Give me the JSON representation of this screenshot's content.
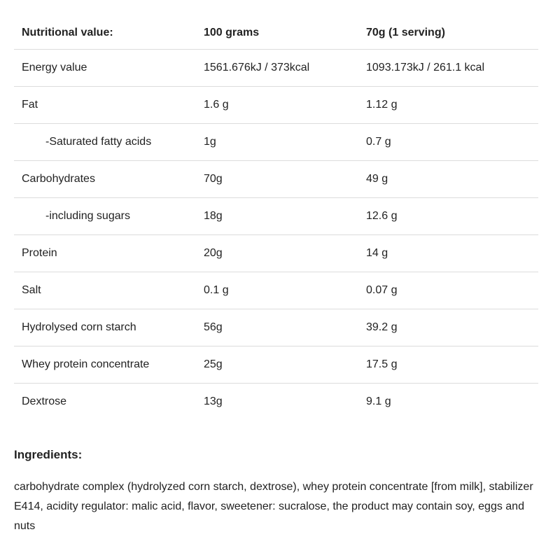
{
  "table": {
    "headers": [
      "Nutritional value:",
      "100 grams",
      "70g (1 serving)"
    ],
    "rows": [
      {
        "name": "Energy value",
        "per_100g": "1561.676kJ / 373kcal",
        "per_serving": "1093.173kJ / 261.1 kcal"
      },
      {
        "name": "Fat",
        "per_100g": "1.6 g",
        "per_serving": "1.12 g"
      },
      {
        "name": "-Saturated fatty acids",
        "per_100g": "1g",
        "per_serving": "0.7 g"
      },
      {
        "name": "Carbohydrates",
        "per_100g": "70g",
        "per_serving": "49 g"
      },
      {
        "name": "-including sugars",
        "per_100g": "18g",
        "per_serving": "12.6 g"
      },
      {
        "name": "Protein",
        "per_100g": "20g",
        "per_serving": "14 g"
      },
      {
        "name": "Salt",
        "per_100g": "0.1 g",
        "per_serving": "0.07 g"
      },
      {
        "name": "Hydrolysed corn starch",
        "per_100g": "56g",
        "per_serving": "39.2 g"
      },
      {
        "name": "Whey protein concentrate",
        "per_100g": "25g",
        "per_serving": "17.5 g"
      },
      {
        "name": "Dextrose",
        "per_100g": "13g",
        "per_serving": "9.1 g"
      }
    ]
  },
  "ingredients": {
    "heading": "Ingredients:",
    "text": "carbohydrate complex (hydrolyzed corn starch, dextrose), whey protein concentrate [from milk], stabilizer E414, acidity regulator: malic acid, flavor, sweetener: sucralose, the product may contain soy, eggs and nuts"
  },
  "colors": {
    "text": "#222222",
    "divider": "#dcdcdc",
    "background": "#ffffff"
  }
}
